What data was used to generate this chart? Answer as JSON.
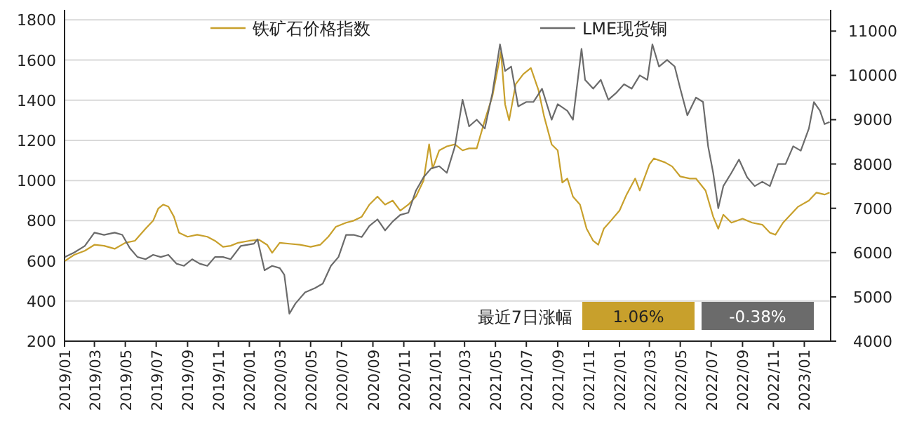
{
  "chart_data": {
    "type": "line",
    "legend": "top",
    "grid": "y",
    "line_style": "solid",
    "marker": "none",
    "xlim": [
      "2019-01-01",
      "2023-02-22"
    ],
    "xticks": [
      {
        "value": "2019-01",
        "label": "2019/01"
      },
      {
        "value": "2019-03",
        "label": "2019/03"
      },
      {
        "value": "2019-05",
        "label": "2019/05"
      },
      {
        "value": "2019-07",
        "label": "2019/07"
      },
      {
        "value": "2019-09",
        "label": "2019/09"
      },
      {
        "value": "2019-11",
        "label": "2019/11"
      },
      {
        "value": "2020-01",
        "label": "2020/01"
      },
      {
        "value": "2020-03",
        "label": "2020/03"
      },
      {
        "value": "2020-05",
        "label": "2020/05"
      },
      {
        "value": "2020-07",
        "label": "2020/07"
      },
      {
        "value": "2020-09",
        "label": "2020/09"
      },
      {
        "value": "2020-11",
        "label": "2020/11"
      },
      {
        "value": "2021-01",
        "label": "2021/01"
      },
      {
        "value": "2021-03",
        "label": "2021/03"
      },
      {
        "value": "2021-05",
        "label": "2021/05"
      },
      {
        "value": "2021-07",
        "label": "2021/07"
      },
      {
        "value": "2021-09",
        "label": "2021/09"
      },
      {
        "value": "2021-11",
        "label": "2021/11"
      },
      {
        "value": "2022-01",
        "label": "2022/01"
      },
      {
        "value": "2022-03",
        "label": "2022/03"
      },
      {
        "value": "2022-05",
        "label": "2022/05"
      },
      {
        "value": "2022-07",
        "label": "2022/07"
      },
      {
        "value": "2022-09",
        "label": "2022/09"
      },
      {
        "value": "2022-11",
        "label": "2022/11"
      },
      {
        "value": "2023-01",
        "label": "2023/01"
      }
    ],
    "ylim": [
      200,
      1850
    ],
    "yticks": [
      200,
      400,
      600,
      800,
      1000,
      1200,
      1400,
      1600,
      1800
    ],
    "y2lim": [
      4000,
      11480
    ],
    "y2ticks": [
      4000,
      5000,
      6000,
      7000,
      8000,
      9000,
      10000,
      11000
    ],
    "annotations": [
      "最近7日涨幅",
      "1.06%",
      "-0.38%"
    ],
    "series": [
      {
        "name": "铁矿石价格指数",
        "color": "#c8a02c",
        "x": [
          "2019-01-02",
          "2019-01-20",
          "2019-02-10",
          "2019-03-01",
          "2019-03-20",
          "2019-04-10",
          "2019-05-01",
          "2019-05-20",
          "2019-06-10",
          "2019-06-25",
          "2019-07-05",
          "2019-07-15",
          "2019-07-25",
          "2019-08-05",
          "2019-08-15",
          "2019-09-01",
          "2019-09-20",
          "2019-10-10",
          "2019-10-25",
          "2019-11-10",
          "2019-11-25",
          "2019-12-10",
          "2020-01-01",
          "2020-01-20",
          "2020-02-05",
          "2020-02-15",
          "2020-03-01",
          "2020-03-20",
          "2020-04-10",
          "2020-05-01",
          "2020-05-20",
          "2020-06-05",
          "2020-06-20",
          "2020-07-10",
          "2020-07-25",
          "2020-08-10",
          "2020-08-25",
          "2020-09-10",
          "2020-09-25",
          "2020-10-10",
          "2020-10-25",
          "2020-11-10",
          "2020-11-25",
          "2020-12-10",
          "2020-12-21",
          "2020-12-28",
          "2021-01-10",
          "2021-01-25",
          "2021-02-10",
          "2021-02-25",
          "2021-03-10",
          "2021-03-25",
          "2021-04-10",
          "2021-04-25",
          "2021-05-12",
          "2021-05-20",
          "2021-05-28",
          "2021-06-10",
          "2021-06-25",
          "2021-07-10",
          "2021-07-25",
          "2021-08-05",
          "2021-08-20",
          "2021-09-01",
          "2021-09-10",
          "2021-09-20",
          "2021-10-01",
          "2021-10-15",
          "2021-10-28",
          "2021-11-10",
          "2021-11-20",
          "2021-12-01",
          "2021-12-15",
          "2022-01-01",
          "2022-01-15",
          "2022-02-01",
          "2022-02-10",
          "2022-03-01",
          "2022-03-10",
          "2022-04-01",
          "2022-04-15",
          "2022-05-01",
          "2022-05-20",
          "2022-06-01",
          "2022-06-20",
          "2022-07-05",
          "2022-07-15",
          "2022-07-25",
          "2022-08-10",
          "2022-09-01",
          "2022-09-20",
          "2022-10-10",
          "2022-10-25",
          "2022-11-05",
          "2022-11-20",
          "2022-12-05",
          "2022-12-20",
          "2023-01-10",
          "2023-01-25",
          "2023-02-10",
          "2023-02-20"
        ],
        "values": [
          600,
          630,
          650,
          680,
          675,
          660,
          690,
          700,
          760,
          800,
          860,
          880,
          870,
          820,
          740,
          720,
          730,
          720,
          700,
          670,
          675,
          690,
          700,
          705,
          680,
          640,
          690,
          685,
          680,
          670,
          680,
          720,
          770,
          790,
          800,
          820,
          880,
          920,
          880,
          900,
          850,
          880,
          920,
          1000,
          1180,
          1060,
          1150,
          1170,
          1180,
          1150,
          1160,
          1160,
          1300,
          1420,
          1640,
          1380,
          1300,
          1480,
          1530,
          1560,
          1450,
          1320,
          1180,
          1150,
          990,
          1010,
          920,
          880,
          760,
          700,
          680,
          760,
          800,
          850,
          930,
          1010,
          950,
          1080,
          1110,
          1090,
          1070,
          1020,
          1010,
          1010,
          950,
          820,
          760,
          830,
          790,
          810,
          790,
          780,
          740,
          730,
          790,
          830,
          870,
          900,
          940,
          930,
          940
        ]
      },
      {
        "name": "LME现货铜",
        "color": "#6b6b6b",
        "axis": "y2",
        "x": [
          "2019-01-02",
          "2019-01-20",
          "2019-02-10",
          "2019-03-01",
          "2019-03-20",
          "2019-04-10",
          "2019-04-25",
          "2019-05-10",
          "2019-05-25",
          "2019-06-10",
          "2019-06-25",
          "2019-07-10",
          "2019-07-25",
          "2019-08-10",
          "2019-08-25",
          "2019-09-10",
          "2019-09-25",
          "2019-10-10",
          "2019-10-25",
          "2019-11-10",
          "2019-11-25",
          "2019-12-15",
          "2020-01-10",
          "2020-01-17",
          "2020-01-31",
          "2020-02-15",
          "2020-03-01",
          "2020-03-10",
          "2020-03-20",
          "2020-04-01",
          "2020-04-20",
          "2020-05-10",
          "2020-05-25",
          "2020-06-10",
          "2020-06-25",
          "2020-07-10",
          "2020-07-25",
          "2020-08-10",
          "2020-08-25",
          "2020-09-10",
          "2020-09-25",
          "2020-10-10",
          "2020-10-25",
          "2020-11-10",
          "2020-11-25",
          "2020-12-10",
          "2020-12-25",
          "2021-01-10",
          "2021-01-25",
          "2021-02-10",
          "2021-02-25",
          "2021-03-10",
          "2021-03-25",
          "2021-04-10",
          "2021-04-25",
          "2021-05-10",
          "2021-05-20",
          "2021-06-01",
          "2021-06-15",
          "2021-07-01",
          "2021-07-15",
          "2021-08-01",
          "2021-08-20",
          "2021-09-01",
          "2021-09-20",
          "2021-10-01",
          "2021-10-18",
          "2021-10-25",
          "2021-11-10",
          "2021-11-25",
          "2021-12-10",
          "2021-12-25",
          "2022-01-10",
          "2022-01-25",
          "2022-02-10",
          "2022-02-25",
          "2022-03-07",
          "2022-03-20",
          "2022-04-05",
          "2022-04-20",
          "2022-05-01",
          "2022-05-15",
          "2022-06-01",
          "2022-06-15",
          "2022-06-25",
          "2022-07-05",
          "2022-07-15",
          "2022-07-25",
          "2022-08-10",
          "2022-08-25",
          "2022-09-10",
          "2022-09-25",
          "2022-10-10",
          "2022-10-25",
          "2022-11-10",
          "2022-11-25",
          "2022-12-10",
          "2022-12-25",
          "2023-01-10",
          "2023-01-20",
          "2023-02-01",
          "2023-02-10",
          "2023-02-20"
        ],
        "values": [
          5900,
          6000,
          6150,
          6450,
          6400,
          6450,
          6400,
          6100,
          5900,
          5850,
          5950,
          5900,
          5950,
          5750,
          5700,
          5850,
          5750,
          5700,
          5900,
          5900,
          5850,
          6150,
          6200,
          6300,
          5600,
          5700,
          5650,
          5500,
          4620,
          4850,
          5100,
          5200,
          5300,
          5700,
          5900,
          6400,
          6400,
          6350,
          6600,
          6750,
          6500,
          6700,
          6850,
          6900,
          7400,
          7700,
          7900,
          7950,
          7800,
          8400,
          9450,
          8850,
          9000,
          8800,
          9600,
          10700,
          10100,
          10200,
          9300,
          9400,
          9400,
          9700,
          9000,
          9350,
          9200,
          9000,
          10600,
          9900,
          9700,
          9900,
          9450,
          9600,
          9800,
          9700,
          10000,
          9900,
          10700,
          10200,
          10350,
          10200,
          9700,
          9100,
          9500,
          9400,
          8400,
          7800,
          7000,
          7500,
          7800,
          8100,
          7700,
          7500,
          7600,
          7500,
          8000,
          8000,
          8400,
          8300,
          8800,
          9400,
          9200,
          8900,
          8950
        ]
      }
    ]
  }
}
